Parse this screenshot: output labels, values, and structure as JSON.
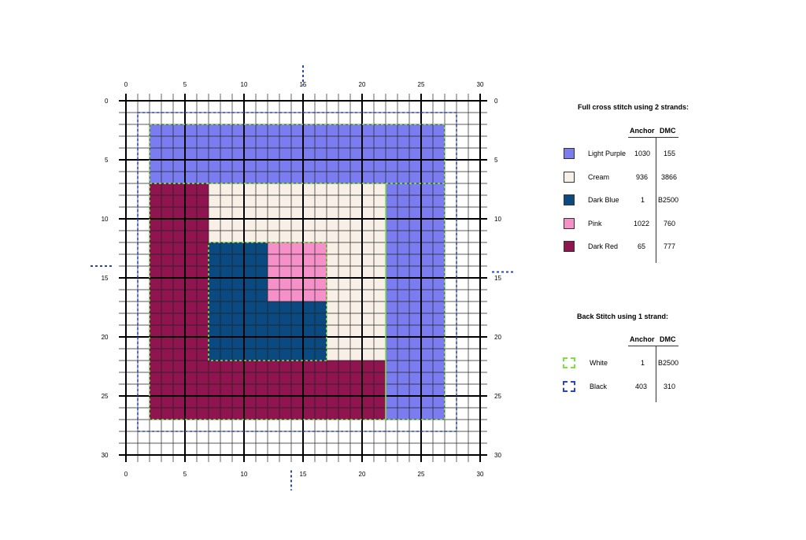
{
  "chart_data": {
    "type": "cross-stitch-pattern",
    "grid": {
      "size": 30,
      "major_every": 5
    },
    "tick_labels": [
      "0",
      "5",
      "10",
      "15",
      "20",
      "25",
      "30"
    ],
    "fills": [
      {
        "name": "Light Purple",
        "color": "#7a7cf0",
        "rects": [
          [
            2,
            2,
            27,
            7
          ],
          [
            22,
            7,
            27,
            27
          ]
        ]
      },
      {
        "name": "Cream",
        "color": "#f8efe6",
        "rects": [
          [
            7,
            7,
            22,
            12
          ],
          [
            17,
            12,
            22,
            22
          ]
        ]
      },
      {
        "name": "Dark Red",
        "color": "#8f1450",
        "rects": [
          [
            2,
            7,
            7,
            27
          ],
          [
            7,
            22,
            22,
            27
          ]
        ]
      },
      {
        "name": "Dark Blue",
        "color": "#0a4a80",
        "rects": [
          [
            7,
            12,
            12,
            22
          ],
          [
            12,
            17,
            17,
            22
          ]
        ]
      },
      {
        "name": "Pink",
        "color": "#f590c8",
        "rects": [
          [
            12,
            12,
            17,
            17
          ]
        ]
      }
    ],
    "backstitch": [
      {
        "name": "White",
        "color": "#7ee040",
        "outlines": [
          [
            2,
            2,
            27,
            7
          ],
          [
            22,
            7,
            27,
            27
          ],
          [
            2,
            7,
            22,
            27
          ],
          [
            7,
            12,
            17,
            22
          ]
        ]
      },
      {
        "name": "Black",
        "color": "#2a44c8",
        "outlines": [
          [
            1,
            1,
            28,
            28
          ]
        ]
      }
    ],
    "center_markers": {
      "x": 14.5,
      "y": 14.5
    }
  },
  "legend": {
    "full_cross": {
      "title": "Full cross stitch using 2 strands:",
      "col_anchor": "Anchor",
      "col_dmc": "DMC",
      "rows": [
        {
          "name": "Light Purple",
          "anchor": "1030",
          "dmc": "155",
          "color": "#7a7cf0"
        },
        {
          "name": "Cream",
          "anchor": "936",
          "dmc": "3866",
          "color": "#f8efe6"
        },
        {
          "name": "Dark Blue",
          "anchor": "1",
          "dmc": "B2500",
          "color": "#0a4a80"
        },
        {
          "name": "Pink",
          "anchor": "1022",
          "dmc": "760",
          "color": "#f590c8"
        },
        {
          "name": "Dark Red",
          "anchor": "65",
          "dmc": "777",
          "color": "#8f1450"
        }
      ]
    },
    "back_stitch": {
      "title": "Back Stitch using 1 strand:",
      "col_anchor": "Anchor",
      "col_dmc": "DMC",
      "rows": [
        {
          "name": "White",
          "anchor": "1",
          "dmc": "B2500",
          "color": "#7ee040"
        },
        {
          "name": "Black",
          "anchor": "403",
          "dmc": "310",
          "color": "#2a44c8"
        }
      ]
    }
  }
}
